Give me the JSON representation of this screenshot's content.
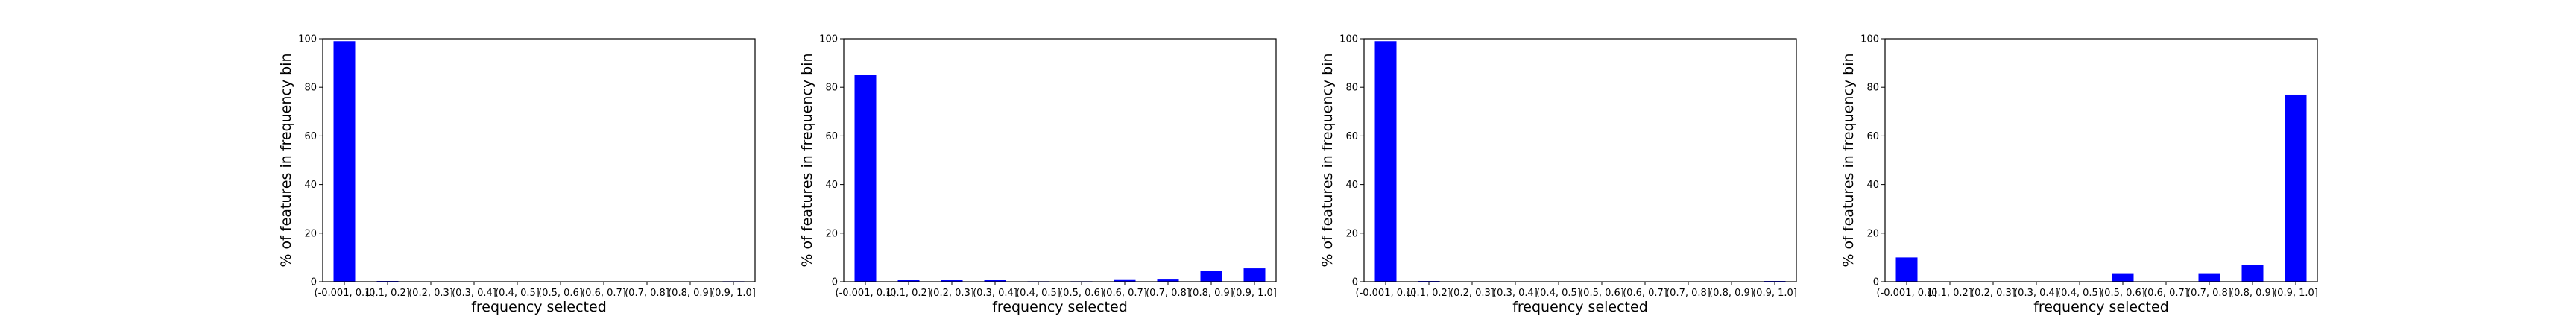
{
  "chart_data": [
    {
      "type": "bar",
      "xlabel": "frequency selected",
      "ylabel": "% of features in frequency bin",
      "ylim": [
        0,
        100
      ],
      "yticks": [
        0,
        20,
        40,
        60,
        80,
        100
      ],
      "categories": [
        "(-0.001, 0.1]",
        "(0.1, 0.2]",
        "(0.2, 0.3]",
        "(0.3, 0.4]",
        "(0.4, 0.5]",
        "(0.5, 0.6]",
        "(0.6, 0.7]",
        "(0.7, 0.8]",
        "(0.8, 0.9]",
        "(0.9, 1.0]"
      ],
      "values": [
        99,
        0.3,
        0.1,
        0.1,
        0.1,
        0.1,
        0.1,
        0.1,
        0.1,
        0.2
      ],
      "color": "#0000ff"
    },
    {
      "type": "bar",
      "xlabel": "frequency selected",
      "ylabel": "% of features in frequency bin",
      "ylim": [
        0,
        100
      ],
      "yticks": [
        0,
        20,
        40,
        60,
        80,
        100
      ],
      "categories": [
        "(-0.001, 0.1]",
        "(0.1, 0.2]",
        "(0.2, 0.3]",
        "(0.3, 0.4]",
        "(0.4, 0.5]",
        "(0.5, 0.6]",
        "(0.6, 0.7]",
        "(0.7, 0.8]",
        "(0.8, 0.9]",
        "(0.9, 1.0]"
      ],
      "values": [
        85,
        0.8,
        0.8,
        0.8,
        0.2,
        0.2,
        1.0,
        1.2,
        4.5,
        5.5
      ],
      "color": "#0000ff"
    },
    {
      "type": "bar",
      "xlabel": "frequency selected",
      "ylabel": "% of features in frequency bin",
      "ylim": [
        0,
        100
      ],
      "yticks": [
        0,
        20,
        40,
        60,
        80,
        100
      ],
      "categories": [
        "(-0.001, 0.1]",
        "(0.1, 0.2]",
        "(0.2, 0.3]",
        "(0.3, 0.4]",
        "(0.4, 0.5]",
        "(0.5, 0.6]",
        "(0.6, 0.7]",
        "(0.7, 0.8]",
        "(0.8, 0.9]",
        "(0.9, 1.0]"
      ],
      "values": [
        99,
        0.3,
        0.1,
        0.1,
        0.1,
        0.1,
        0.1,
        0.1,
        0.1,
        0.3
      ],
      "color": "#0000ff"
    },
    {
      "type": "bar",
      "xlabel": "frequency selected",
      "ylabel": "% of features in frequency bin",
      "ylim": [
        0,
        100
      ],
      "yticks": [
        0,
        20,
        40,
        60,
        80,
        100
      ],
      "categories": [
        "(-0.001, 0.1]",
        "(0.1, 0.2]",
        "(0.2, 0.3]",
        "(0.3, 0.4]",
        "(0.4, 0.5]",
        "(0.5, 0.6]",
        "(0.6, 0.7]",
        "(0.7, 0.8]",
        "(0.8, 0.9]",
        "(0.9, 1.0]"
      ],
      "values": [
        10,
        0,
        0,
        0,
        0,
        3.5,
        0,
        3.5,
        7,
        77
      ],
      "color": "#0000ff"
    }
  ]
}
